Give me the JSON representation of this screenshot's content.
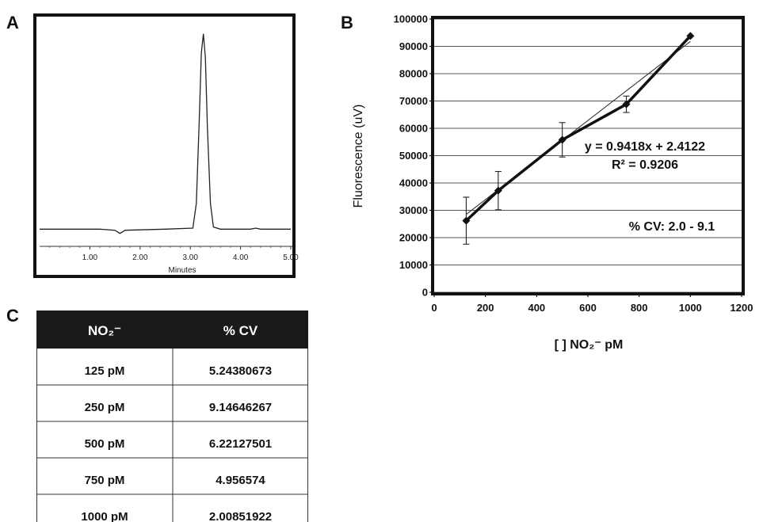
{
  "panels": {
    "a": "A",
    "b": "B",
    "c": "C"
  },
  "chart_data": [
    {
      "type": "line",
      "panel": "A",
      "xlabel": "Minutes",
      "ylabel": "",
      "title": "",
      "xlim": [
        0,
        5.0
      ],
      "x_ticks": [
        "1.00",
        "2.00",
        "3.00",
        "4.00",
        "5.00"
      ],
      "x_tick_values": [
        1.0,
        2.0,
        3.0,
        4.0,
        5.0
      ],
      "grid": false,
      "series": [
        {
          "x": [
            0,
            1.2,
            1.5,
            1.6,
            1.7,
            2.5,
            3.05,
            3.12,
            3.18,
            3.22,
            3.26,
            3.3,
            3.34,
            3.4,
            3.46,
            3.6,
            4.2,
            4.3,
            4.4,
            5.0
          ],
          "y": [
            0.08,
            0.08,
            0.075,
            0.06,
            0.075,
            0.08,
            0.085,
            0.2,
            0.6,
            0.9,
            0.99,
            0.88,
            0.55,
            0.2,
            0.09,
            0.08,
            0.08,
            0.085,
            0.08,
            0.08
          ]
        }
      ]
    },
    {
      "type": "line",
      "panel": "B",
      "xlabel": "[ ] NO₂⁻ pM",
      "ylabel": "Fluorescence (uV)",
      "title": "",
      "xlim": [
        0,
        1200
      ],
      "ylim": [
        0,
        100000
      ],
      "x_ticks": [
        0,
        200,
        400,
        600,
        800,
        1000,
        1200
      ],
      "y_ticks": [
        0,
        10000,
        20000,
        30000,
        40000,
        50000,
        60000,
        70000,
        80000,
        90000,
        100000
      ],
      "grid": true,
      "series": [
        {
          "x": [
            125,
            250,
            500,
            750,
            1000
          ],
          "y": [
            26200,
            37200,
            55800,
            68800,
            93800
          ],
          "error": [
            8600,
            7000,
            6300,
            3000,
            0
          ]
        }
      ],
      "trendline": {
        "x": [
          125,
          1000
        ],
        "y": [
          28500,
          91800
        ]
      },
      "annotations": {
        "equation": "y = 0.9418x + 2.4122",
        "r2": "R² = 0.9206",
        "cv": "% CV:  2.0 - 9.1"
      }
    },
    {
      "type": "table",
      "panel": "C",
      "columns": [
        "NO₂⁻",
        "% CV"
      ],
      "rows": [
        [
          "125 pM",
          "5.24380673"
        ],
        [
          "250 pM",
          "9.14646267"
        ],
        [
          "500 pM",
          "6.22127501"
        ],
        [
          "750 pM",
          "4.956574"
        ],
        [
          "1000 pM",
          "2.00851922"
        ]
      ]
    }
  ]
}
